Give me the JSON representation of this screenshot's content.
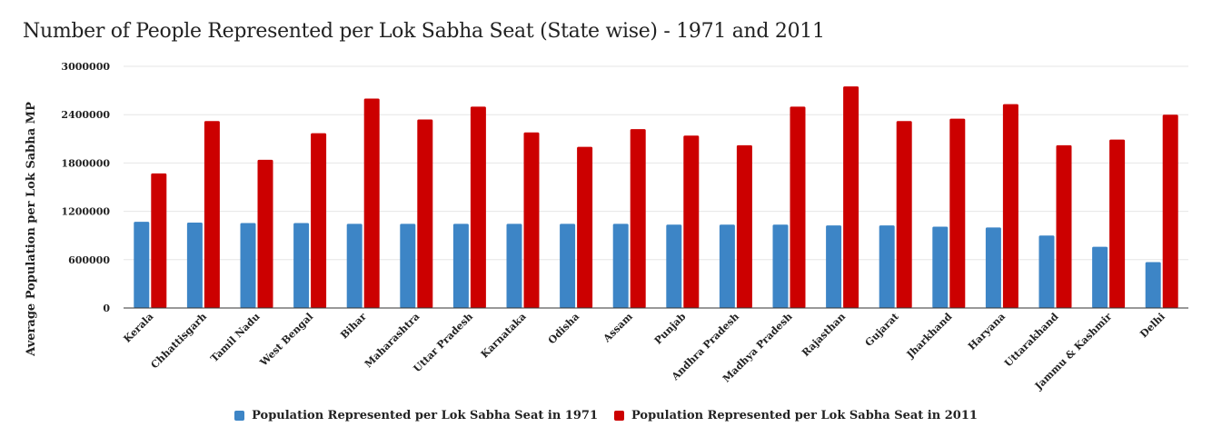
{
  "chart_data": {
    "type": "bar",
    "title": "Number of People Represented per Lok Sabha Seat (State wise) - 1971 and 2011",
    "ylabel": "Average Population per Lok Sabha MP",
    "xlabel": "",
    "ylim": [
      0,
      3000000
    ],
    "yticks": [
      "0",
      "600000",
      "1200000",
      "1800000",
      "2400000",
      "3000000"
    ],
    "grid": true,
    "legend_position": "bottom",
    "categories": [
      "Kerala",
      "Chhattisgarh",
      "Tamil Nadu",
      "West Bengal",
      "Bihar",
      "Maharashtra",
      "Uttar Pradesh",
      "Karnataka",
      "Odisha",
      "Assam",
      "Punjab",
      "Andhra Pradesh",
      "Madhya Pradesh",
      "Rajasthan",
      "Gujarat",
      "Jharkhand",
      "Haryana",
      "Uttarakhand",
      "Jammu & Kashmir",
      "Delhi"
    ],
    "series": [
      {
        "name": "Population Represented per Lok Sabha Seat in 1971",
        "color": "#3d85c6",
        "values": [
          1070000,
          1060000,
          1055000,
          1055000,
          1045000,
          1045000,
          1045000,
          1045000,
          1045000,
          1045000,
          1035000,
          1035000,
          1035000,
          1025000,
          1025000,
          1010000,
          1000000,
          900000,
          760000,
          570000
        ]
      },
      {
        "name": "Population Represented per Lok Sabha Seat in 2011",
        "color": "#cc0000",
        "values": [
          1670000,
          2320000,
          1840000,
          2170000,
          2600000,
          2340000,
          2500000,
          2180000,
          2000000,
          2220000,
          2140000,
          2020000,
          2500000,
          2750000,
          2320000,
          2350000,
          2530000,
          2020000,
          2090000,
          2400000
        ]
      }
    ]
  }
}
